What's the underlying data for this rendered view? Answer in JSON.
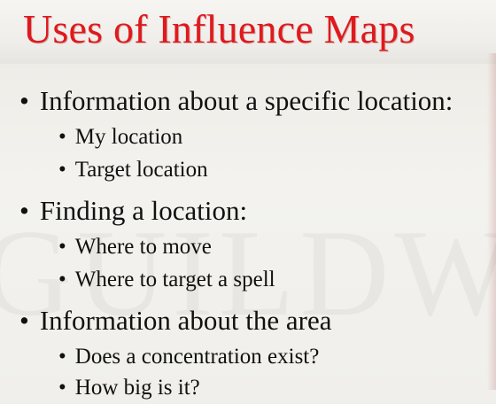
{
  "slide": {
    "title": "Uses of Influence Maps",
    "watermark": "GUILDWA",
    "bullet_glyph": "•",
    "items": [
      {
        "text": "Information about a specific location:",
        "subitems": [
          "My location",
          "Target location"
        ]
      },
      {
        "text": "Finding a location:",
        "subitems": [
          "Where to move",
          "Where to target a spell"
        ]
      },
      {
        "text": "Information about the area",
        "subitems": [
          "Does a concentration exist?",
          "How big is it?"
        ]
      }
    ]
  },
  "colors": {
    "title": "#e0191d",
    "text": "#111111"
  }
}
